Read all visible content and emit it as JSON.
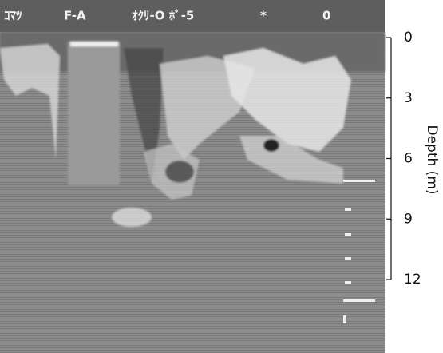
{
  "header": {
    "items": [
      "ｺﾏﾂ",
      "F-A",
      "ｵｸﾘ-O ﾎﾟ-5",
      "*",
      "0"
    ]
  },
  "depth_axis": {
    "label": "Depth (m)",
    "ylim": [
      0,
      12
    ],
    "yticks": [
      0,
      3,
      6,
      9,
      12
    ]
  }
}
